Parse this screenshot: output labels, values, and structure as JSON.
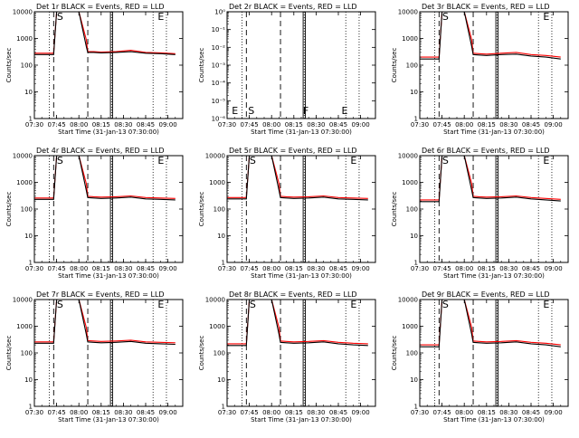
{
  "figure": {
    "xlabel": "Start Time (31-Jan-13 07:30:00)",
    "ylabel": "Counts/sec",
    "x_ticks": [
      "07:30",
      "07:45",
      "08:00",
      "08:15",
      "08:30",
      "08:45",
      "09:00"
    ],
    "y_ticks_counts": [
      "1",
      "10",
      "100",
      "1000",
      "10000"
    ],
    "y_ticks_empty": [
      "10⁰",
      "10⁻¹",
      "10⁻²",
      "10⁻³",
      "10⁻⁴",
      "10⁻⁵",
      "10⁻⁶"
    ],
    "colors": {
      "events": "#000000",
      "lld": "#ff0000"
    }
  },
  "chart_data": [
    {
      "type": "line",
      "title": "Det 1r BLACK = Events, RED = LLD",
      "xlim": [
        "07:30",
        "09:10"
      ],
      "ylim": [
        1,
        10000
      ],
      "yscale": "log",
      "markers": [
        {
          "label": "S",
          "x": "07:47"
        },
        {
          "label": "E",
          "x": "08:55"
        }
      ],
      "vlines": {
        "dashed": [
          "07:43",
          "08:06"
        ],
        "solid": [
          "08:22"
        ],
        "dotted": [
          "07:40",
          "08:22",
          "08:50",
          "08:59"
        ]
      },
      "series": [
        {
          "name": "Events",
          "x": [
            "07:30",
            "07:40",
            "07:43",
            "07:45",
            "07:50",
            "08:00",
            "08:05",
            "08:06",
            "08:10",
            "08:15",
            "08:25",
            "08:35",
            "08:45",
            "08:55",
            "09:05"
          ],
          "y": [
            250,
            250,
            250,
            10000,
            10000,
            10000,
            500,
            300,
            300,
            290,
            300,
            320,
            280,
            270,
            250
          ]
        },
        {
          "name": "LLD",
          "x": [
            "07:30",
            "07:40",
            "07:43",
            "07:45",
            "07:50",
            "08:00",
            "08:05",
            "08:06",
            "08:10",
            "08:15",
            "08:25",
            "08:35",
            "08:45",
            "08:55",
            "09:05"
          ],
          "y": [
            280,
            280,
            280,
            10000,
            10000,
            10000,
            900,
            320,
            320,
            310,
            320,
            360,
            300,
            290,
            270
          ]
        }
      ]
    },
    {
      "type": "line",
      "title": "Det 2r BLACK = Events, RED = LLD",
      "xlim": [
        "07:30",
        "09:10"
      ],
      "ylim": [
        1e-06,
        1
      ],
      "yscale": "log",
      "markers": [
        {
          "label": "E",
          "x": "07:35"
        },
        {
          "label": "S",
          "x": "07:46"
        },
        {
          "label": "F",
          "x": "08:23"
        },
        {
          "label": "E",
          "x": "08:49"
        }
      ],
      "vlines": {
        "dashed": [
          "07:43",
          "08:06"
        ],
        "solid": [
          "08:22"
        ],
        "dotted": [
          "07:40",
          "08:22",
          "08:50",
          "08:59"
        ]
      },
      "series": []
    },
    {
      "type": "line",
      "title": "Det 3r BLACK = Events, RED = LLD",
      "xlim": [
        "07:30",
        "09:10"
      ],
      "ylim": [
        1,
        10000
      ],
      "yscale": "log",
      "markers": [
        {
          "label": "S",
          "x": "07:47"
        },
        {
          "label": "E",
          "x": "08:55"
        }
      ],
      "vlines": {
        "dashed": [
          "07:43",
          "08:06"
        ],
        "solid": [
          "08:22"
        ],
        "dotted": [
          "07:40",
          "08:22",
          "08:50",
          "08:59"
        ]
      },
      "series": [
        {
          "name": "Events",
          "x": [
            "07:30",
            "07:40",
            "07:43",
            "07:45",
            "07:50",
            "08:00",
            "08:05",
            "08:06",
            "08:10",
            "08:15",
            "08:25",
            "08:35",
            "08:45",
            "08:55",
            "09:05"
          ],
          "y": [
            170,
            170,
            170,
            10000,
            10000,
            10000,
            500,
            250,
            240,
            230,
            250,
            260,
            220,
            200,
            170
          ]
        },
        {
          "name": "LLD",
          "x": [
            "07:30",
            "07:40",
            "07:43",
            "07:45",
            "07:50",
            "08:00",
            "08:05",
            "08:06",
            "08:10",
            "08:15",
            "08:25",
            "08:35",
            "08:45",
            "08:55",
            "09:05"
          ],
          "y": [
            200,
            200,
            200,
            10000,
            10000,
            10000,
            900,
            280,
            270,
            260,
            280,
            300,
            250,
            230,
            200
          ]
        }
      ]
    },
    {
      "type": "line",
      "title": "Det 4r BLACK = Events, RED = LLD",
      "xlim": [
        "07:30",
        "09:10"
      ],
      "ylim": [
        1,
        10000
      ],
      "yscale": "log",
      "markers": [
        {
          "label": "S",
          "x": "07:47"
        },
        {
          "label": "E",
          "x": "08:55"
        }
      ],
      "vlines": {
        "dashed": [
          "07:43",
          "08:06"
        ],
        "solid": [
          "08:22"
        ],
        "dotted": [
          "07:40",
          "08:22",
          "08:50",
          "08:59"
        ]
      },
      "series": [
        {
          "name": "Events",
          "x": [
            "07:30",
            "07:40",
            "07:43",
            "07:45",
            "07:50",
            "08:00",
            "08:05",
            "08:06",
            "08:10",
            "08:15",
            "08:25",
            "08:35",
            "08:45",
            "08:55",
            "09:05"
          ],
          "y": [
            230,
            230,
            230,
            10000,
            10000,
            10000,
            500,
            270,
            260,
            250,
            260,
            280,
            240,
            230,
            220
          ]
        },
        {
          "name": "LLD",
          "x": [
            "07:30",
            "07:40",
            "07:43",
            "07:45",
            "07:50",
            "08:00",
            "08:05",
            "08:06",
            "08:10",
            "08:15",
            "08:25",
            "08:35",
            "08:45",
            "08:55",
            "09:05"
          ],
          "y": [
            260,
            260,
            260,
            10000,
            10000,
            10000,
            900,
            300,
            290,
            280,
            290,
            310,
            270,
            260,
            250
          ]
        }
      ]
    },
    {
      "type": "line",
      "title": "Det 5r BLACK = Events, RED = LLD",
      "xlim": [
        "07:30",
        "09:10"
      ],
      "ylim": [
        1,
        10000
      ],
      "yscale": "log",
      "markers": [
        {
          "label": "S",
          "x": "07:47"
        },
        {
          "label": "E",
          "x": "08:55"
        }
      ],
      "vlines": {
        "dashed": [
          "07:43",
          "08:06"
        ],
        "solid": [
          "08:22"
        ],
        "dotted": [
          "07:40",
          "08:22",
          "08:50",
          "08:59"
        ]
      },
      "series": [
        {
          "name": "Events",
          "x": [
            "07:30",
            "07:40",
            "07:43",
            "07:45",
            "07:50",
            "08:00",
            "08:05",
            "08:06",
            "08:10",
            "08:15",
            "08:25",
            "08:35",
            "08:45",
            "08:55",
            "09:05"
          ],
          "y": [
            240,
            240,
            240,
            10000,
            10000,
            10000,
            500,
            270,
            260,
            250,
            260,
            280,
            240,
            230,
            220
          ]
        },
        {
          "name": "LLD",
          "x": [
            "07:30",
            "07:40",
            "07:43",
            "07:45",
            "07:50",
            "08:00",
            "08:05",
            "08:06",
            "08:10",
            "08:15",
            "08:25",
            "08:35",
            "08:45",
            "08:55",
            "09:05"
          ],
          "y": [
            270,
            270,
            270,
            10000,
            10000,
            10000,
            900,
            300,
            290,
            280,
            290,
            310,
            270,
            260,
            250
          ]
        }
      ]
    },
    {
      "type": "line",
      "title": "Det 6r BLACK = Events, RED = LLD",
      "xlim": [
        "07:30",
        "09:10"
      ],
      "ylim": [
        1,
        10000
      ],
      "yscale": "log",
      "markers": [
        {
          "label": "S",
          "x": "07:47"
        },
        {
          "label": "E",
          "x": "08:55"
        }
      ],
      "vlines": {
        "dashed": [
          "07:43",
          "08:06"
        ],
        "solid": [
          "08:22"
        ],
        "dotted": [
          "07:40",
          "08:22",
          "08:50",
          "08:59"
        ]
      },
      "series": [
        {
          "name": "Events",
          "x": [
            "07:30",
            "07:40",
            "07:43",
            "07:45",
            "07:50",
            "08:00",
            "08:05",
            "08:06",
            "08:10",
            "08:15",
            "08:25",
            "08:35",
            "08:45",
            "08:55",
            "09:05"
          ],
          "y": [
            190,
            190,
            190,
            10000,
            10000,
            10000,
            500,
            270,
            260,
            250,
            260,
            280,
            240,
            220,
            200
          ]
        },
        {
          "name": "LLD",
          "x": [
            "07:30",
            "07:40",
            "07:43",
            "07:45",
            "07:50",
            "08:00",
            "08:05",
            "08:06",
            "08:10",
            "08:15",
            "08:25",
            "08:35",
            "08:45",
            "08:55",
            "09:05"
          ],
          "y": [
            220,
            220,
            220,
            10000,
            10000,
            10000,
            900,
            300,
            290,
            280,
            290,
            310,
            270,
            250,
            230
          ]
        }
      ]
    },
    {
      "type": "line",
      "title": "Det 7r BLACK = Events, RED = LLD",
      "xlim": [
        "07:30",
        "09:10"
      ],
      "ylim": [
        1,
        10000
      ],
      "yscale": "log",
      "markers": [
        {
          "label": "S",
          "x": "07:47"
        },
        {
          "label": "E",
          "x": "08:55"
        }
      ],
      "vlines": {
        "dashed": [
          "07:43",
          "08:06"
        ],
        "solid": [
          "08:22"
        ],
        "dotted": [
          "07:40",
          "08:22",
          "08:50",
          "08:59"
        ]
      },
      "series": [
        {
          "name": "Events",
          "x": [
            "07:30",
            "07:40",
            "07:43",
            "07:45",
            "07:50",
            "08:00",
            "08:05",
            "08:06",
            "08:10",
            "08:15",
            "08:25",
            "08:35",
            "08:45",
            "08:55",
            "09:05"
          ],
          "y": [
            230,
            230,
            230,
            10000,
            10000,
            10000,
            500,
            260,
            250,
            240,
            250,
            270,
            230,
            220,
            210
          ]
        },
        {
          "name": "LLD",
          "x": [
            "07:30",
            "07:40",
            "07:43",
            "07:45",
            "07:50",
            "08:00",
            "08:05",
            "08:06",
            "08:10",
            "08:15",
            "08:25",
            "08:35",
            "08:45",
            "08:55",
            "09:05"
          ],
          "y": [
            260,
            260,
            260,
            10000,
            10000,
            10000,
            900,
            290,
            280,
            270,
            280,
            300,
            260,
            250,
            240
          ]
        }
      ]
    },
    {
      "type": "line",
      "title": "Det 8r BLACK = Events, RED = LLD",
      "xlim": [
        "07:30",
        "09:10"
      ],
      "ylim": [
        1,
        10000
      ],
      "yscale": "log",
      "markers": [
        {
          "label": "S",
          "x": "07:47"
        },
        {
          "label": "E",
          "x": "08:55"
        }
      ],
      "vlines": {
        "dashed": [
          "07:43",
          "08:06"
        ],
        "solid": [
          "08:22"
        ],
        "dotted": [
          "07:40",
          "08:22",
          "08:50",
          "08:59"
        ]
      },
      "series": [
        {
          "name": "Events",
          "x": [
            "07:30",
            "07:40",
            "07:43",
            "07:45",
            "07:50",
            "08:00",
            "08:05",
            "08:06",
            "08:10",
            "08:15",
            "08:25",
            "08:35",
            "08:45",
            "08:55",
            "09:05"
          ],
          "y": [
            190,
            190,
            190,
            10000,
            10000,
            10000,
            500,
            250,
            240,
            230,
            240,
            260,
            220,
            200,
            190
          ]
        },
        {
          "name": "LLD",
          "x": [
            "07:30",
            "07:40",
            "07:43",
            "07:45",
            "07:50",
            "08:00",
            "08:05",
            "08:06",
            "08:10",
            "08:15",
            "08:25",
            "08:35",
            "08:45",
            "08:55",
            "09:05"
          ],
          "y": [
            220,
            220,
            220,
            10000,
            10000,
            10000,
            900,
            280,
            270,
            260,
            270,
            290,
            250,
            230,
            220
          ]
        }
      ]
    },
    {
      "type": "line",
      "title": "Det 9r BLACK = Events, RED = LLD",
      "xlim": [
        "07:30",
        "09:10"
      ],
      "ylim": [
        1,
        10000
      ],
      "yscale": "log",
      "markers": [
        {
          "label": "S",
          "x": "07:47"
        },
        {
          "label": "E",
          "x": "08:55"
        }
      ],
      "vlines": {
        "dashed": [
          "07:43",
          "08:06"
        ],
        "solid": [
          "08:22"
        ],
        "dotted": [
          "07:40",
          "08:22",
          "08:50",
          "08:59"
        ]
      },
      "series": [
        {
          "name": "Events",
          "x": [
            "07:30",
            "07:40",
            "07:43",
            "07:45",
            "07:50",
            "08:00",
            "08:05",
            "08:06",
            "08:10",
            "08:15",
            "08:25",
            "08:35",
            "08:45",
            "08:55",
            "09:05"
          ],
          "y": [
            170,
            170,
            170,
            10000,
            10000,
            10000,
            500,
            250,
            240,
            230,
            240,
            260,
            220,
            200,
            170
          ]
        },
        {
          "name": "LLD",
          "x": [
            "07:30",
            "07:40",
            "07:43",
            "07:45",
            "07:50",
            "08:00",
            "08:05",
            "08:06",
            "08:10",
            "08:15",
            "08:25",
            "08:35",
            "08:45",
            "08:55",
            "09:05"
          ],
          "y": [
            200,
            200,
            200,
            10000,
            10000,
            10000,
            900,
            280,
            270,
            260,
            270,
            290,
            250,
            230,
            200
          ]
        }
      ]
    }
  ]
}
